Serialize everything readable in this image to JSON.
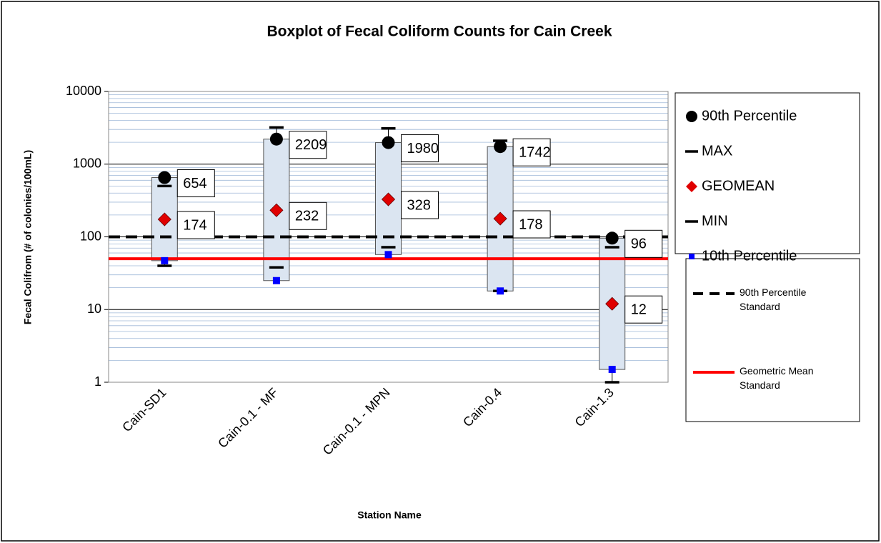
{
  "chart_data": {
    "type": "boxplot",
    "title": "Boxplot of Fecal Coliform Counts for Cain Creek",
    "x_label": "Station Name",
    "y_label": "Fecal Colifrom (# of colonies/100mL)",
    "categories": [
      "Cain-SD1",
      "Cain-0.1 - MF",
      "Cain-0.1 - MPN",
      "Cain-0.4",
      "Cain-1.3"
    ],
    "series": [
      {
        "name": "90th Percentile",
        "marker": "circle",
        "color": "#000000",
        "labels": true,
        "values": [
          654,
          2209,
          1980,
          1742,
          96
        ]
      },
      {
        "name": "MAX",
        "marker": "dash",
        "color": "#000000",
        "values": [
          500,
          3200,
          3100,
          2100,
          72
        ]
      },
      {
        "name": "GEOMEAN",
        "marker": "diamond",
        "color": "#e00000",
        "labels": true,
        "values": [
          174,
          232,
          328,
          178,
          12
        ]
      },
      {
        "name": "MIN",
        "marker": "dash",
        "color": "#000000",
        "values": [
          40,
          38,
          72,
          18,
          1
        ]
      },
      {
        "name": "10th Percentile",
        "marker": "square",
        "color": "#0000ff",
        "values": [
          47,
          25,
          57,
          18,
          1.5
        ]
      }
    ],
    "box_color": "#dbe5f1",
    "reference_lines": [
      {
        "name": "90th Percentile Standard",
        "value": 100,
        "color": "#000000",
        "style": "dashed"
      },
      {
        "name": "Geometric Mean Standard",
        "value": 50,
        "color": "#ff0000",
        "style": "solid"
      }
    ],
    "log_scale": true,
    "ylim": [
      1,
      10000
    ],
    "yticks": [
      1,
      10,
      100,
      1000,
      10000
    ],
    "grid": true,
    "minor_grid": true,
    "legend": "right"
  }
}
